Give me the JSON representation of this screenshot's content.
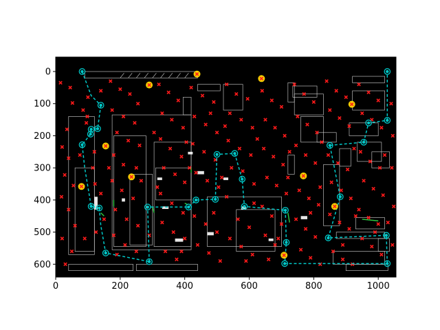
{
  "chart_data": {
    "type": "scatter",
    "title": "",
    "xlabel": "",
    "ylabel": "",
    "xlim": [
      0,
      1055
    ],
    "ylim": [
      640,
      -45
    ],
    "y_inverted": true,
    "x_ticks": [
      "0",
      "200",
      "400",
      "600",
      "800",
      "1000"
    ],
    "y_ticks": [
      "0",
      "100",
      "200",
      "300",
      "400",
      "500",
      "600"
    ],
    "background": "floor-plan-drawing",
    "colors": {
      "plot_bg": "#000000",
      "drawing_lines": "#d9d9d9",
      "wall_green": "#2ecc40",
      "cross_marker": "#ff1a1a",
      "path_line": "#00c8c8",
      "circle_marker": "#00c8c8",
      "star_marker": "#ffd700"
    },
    "series": [
      {
        "marker": "circle",
        "points": [
          [
            82,
            0
          ],
          [
            140,
            105
          ],
          [
            110,
            180
          ],
          [
            130,
            178
          ],
          [
            108,
            195
          ],
          [
            82,
            228
          ],
          [
            110,
            420
          ],
          [
            135,
            425
          ],
          [
            155,
            565
          ],
          [
            290,
            592
          ],
          [
            285,
            422
          ],
          [
            412,
            422
          ],
          [
            435,
            400
          ],
          [
            495,
            398
          ],
          [
            500,
            258
          ],
          [
            555,
            255
          ],
          [
            578,
            335
          ],
          [
            585,
            420
          ],
          [
            712,
            432
          ],
          [
            715,
            532
          ],
          [
            710,
            598
          ],
          [
            1028,
            598
          ],
          [
            1025,
            510
          ],
          [
            845,
            518
          ],
          [
            882,
            390
          ],
          [
            850,
            230
          ],
          [
            955,
            220
          ],
          [
            970,
            160
          ],
          [
            1028,
            152
          ],
          [
            1028,
            0
          ]
        ]
      },
      {
        "marker": "path",
        "segments": [
          [
            [
              82,
              0
            ],
            [
              110,
              75
            ],
            [
              140,
              105
            ]
          ],
          [
            [
              140,
              105
            ],
            [
              130,
              178
            ],
            [
              110,
              180
            ]
          ],
          [
            [
              110,
              180
            ],
            [
              108,
              195
            ],
            [
              82,
              228
            ],
            [
              90,
              300
            ],
            [
              110,
              420
            ],
            [
              135,
              425
            ]
          ],
          [
            [
              135,
              425
            ],
            [
              140,
              480
            ],
            [
              155,
              565
            ],
            [
              290,
              592
            ]
          ],
          [
            [
              290,
              592
            ],
            [
              285,
              422
            ],
            [
              412,
              422
            ],
            [
              435,
              400
            ],
            [
              495,
              398
            ]
          ],
          [
            [
              495,
              398
            ],
            [
              500,
              258
            ],
            [
              555,
              255
            ],
            [
              578,
              335
            ],
            [
              585,
              420
            ],
            [
              712,
              432
            ]
          ],
          [
            [
              712,
              432
            ],
            [
              715,
              532
            ],
            [
              710,
              598
            ],
            [
              1028,
              598
            ]
          ],
          [
            [
              1028,
              598
            ],
            [
              1025,
              510
            ],
            [
              845,
              518
            ],
            [
              882,
              390
            ],
            [
              850,
              230
            ]
          ],
          [
            [
              850,
              230
            ],
            [
              955,
              220
            ],
            [
              970,
              160
            ],
            [
              1028,
              152
            ],
            [
              1028,
              0
            ]
          ]
        ]
      },
      {
        "marker": "star",
        "points": [
          [
            290,
            42
          ],
          [
            438,
            8
          ],
          [
            638,
            22
          ],
          [
            155,
            232
          ],
          [
            235,
            328
          ],
          [
            80,
            358
          ],
          [
            768,
            325
          ],
          [
            865,
            420
          ],
          [
            708,
            572
          ],
          [
            918,
            102
          ]
        ]
      },
      {
        "marker": "x",
        "points": [
          [
            15,
            35
          ],
          [
            45,
            50
          ],
          [
            52,
            98
          ],
          [
            85,
            120
          ],
          [
            98,
            140
          ],
          [
            35,
            180
          ],
          [
            20,
            235
          ],
          [
            40,
            270
          ],
          [
            28,
            322
          ],
          [
            55,
            355
          ],
          [
            18,
            390
          ],
          [
            40,
            430
          ],
          [
            60,
            480
          ],
          [
            20,
            520
          ],
          [
            50,
            560
          ],
          [
            30,
            600
          ],
          [
            95,
            160
          ],
          [
            120,
            250
          ],
          [
            115,
            300
          ],
          [
            122,
            350
          ],
          [
            140,
            380
          ],
          [
            150,
            460
          ],
          [
            125,
            500
          ],
          [
            170,
            30
          ],
          [
            200,
            55
          ],
          [
            230,
            70
          ],
          [
            175,
            120
          ],
          [
            210,
            140
          ],
          [
            245,
            160
          ],
          [
            190,
            190
          ],
          [
            225,
            215
          ],
          [
            260,
            230
          ],
          [
            180,
            260
          ],
          [
            210,
            290
          ],
          [
            250,
            300
          ],
          [
            175,
            340
          ],
          [
            205,
            370
          ],
          [
            240,
            395
          ],
          [
            185,
            430
          ],
          [
            220,
            460
          ],
          [
            255,
            480
          ],
          [
            180,
            510
          ],
          [
            215,
            540
          ],
          [
            250,
            560
          ],
          [
            320,
            40
          ],
          [
            350,
            65
          ],
          [
            380,
            90
          ],
          [
            330,
            130
          ],
          [
            360,
            150
          ],
          [
            395,
            175
          ],
          [
            325,
            210
          ],
          [
            355,
            240
          ],
          [
            390,
            265
          ],
          [
            335,
            300
          ],
          [
            370,
            320
          ],
          [
            400,
            345
          ],
          [
            325,
            380
          ],
          [
            360,
            410
          ],
          [
            395,
            440
          ],
          [
            330,
            470
          ],
          [
            365,
            500
          ],
          [
            400,
            520
          ],
          [
            340,
            560
          ],
          [
            375,
            585
          ],
          [
            420,
            50
          ],
          [
            455,
            75
          ],
          [
            490,
            95
          ],
          [
            430,
            140
          ],
          [
            465,
            165
          ],
          [
            500,
            190
          ],
          [
            425,
            225
          ],
          [
            460,
            250
          ],
          [
            495,
            275
          ],
          [
            435,
            315
          ],
          [
            470,
            340
          ],
          [
            505,
            360
          ],
          [
            430,
            450
          ],
          [
            465,
            475
          ],
          [
            500,
            500
          ],
          [
            440,
            540
          ],
          [
            475,
            565
          ],
          [
            510,
            590
          ],
          [
            530,
            40
          ],
          [
            560,
            70
          ],
          [
            595,
            85
          ],
          [
            540,
            130
          ],
          [
            575,
            150
          ],
          [
            610,
            175
          ],
          [
            535,
            215
          ],
          [
            570,
            240
          ],
          [
            605,
            260
          ],
          [
            545,
            300
          ],
          [
            580,
            310
          ],
          [
            615,
            350
          ],
          [
            530,
            390
          ],
          [
            565,
            460
          ],
          [
            600,
            485
          ],
          [
            540,
            520
          ],
          [
            575,
            545
          ],
          [
            610,
            570
          ],
          [
            640,
            60
          ],
          [
            670,
            90
          ],
          [
            700,
            110
          ],
          [
            650,
            150
          ],
          [
            680,
            175
          ],
          [
            710,
            200
          ],
          [
            645,
            240
          ],
          [
            675,
            265
          ],
          [
            705,
            290
          ],
          [
            655,
            330
          ],
          [
            685,
            355
          ],
          [
            715,
            380
          ],
          [
            640,
            420
          ],
          [
            670,
            450
          ],
          [
            700,
            475
          ],
          [
            650,
            510
          ],
          [
            680,
            540
          ],
          [
            660,
            585
          ],
          [
            740,
            40
          ],
          [
            770,
            70
          ],
          [
            800,
            95
          ],
          [
            750,
            140
          ],
          [
            780,
            165
          ],
          [
            810,
            190
          ],
          [
            745,
            230
          ],
          [
            775,
            260
          ],
          [
            805,
            285
          ],
          [
            755,
            370
          ],
          [
            785,
            395
          ],
          [
            815,
            415
          ],
          [
            745,
            460
          ],
          [
            775,
            490
          ],
          [
            805,
            515
          ],
          [
            760,
            555
          ],
          [
            790,
            580
          ],
          [
            820,
            600
          ],
          [
            840,
            30
          ],
          [
            870,
            60
          ],
          [
            900,
            80
          ],
          [
            850,
            120
          ],
          [
            880,
            145
          ],
          [
            910,
            170
          ],
          [
            845,
            260
          ],
          [
            875,
            285
          ],
          [
            905,
            305
          ],
          [
            855,
            345
          ],
          [
            885,
            370
          ],
          [
            915,
            395
          ],
          [
            850,
            445
          ],
          [
            880,
            470
          ],
          [
            910,
            490
          ],
          [
            860,
            560
          ],
          [
            890,
            585
          ],
          [
            920,
            600
          ],
          [
            940,
            40
          ],
          [
            970,
            65
          ],
          [
            1000,
            90
          ],
          [
            950,
            130
          ],
          [
            980,
            150
          ],
          [
            1010,
            175
          ],
          [
            945,
            250
          ],
          [
            975,
            280
          ],
          [
            1005,
            300
          ],
          [
            955,
            340
          ],
          [
            985,
            365
          ],
          [
            1015,
            385
          ],
          [
            940,
            430
          ],
          [
            970,
            455
          ],
          [
            1000,
            475
          ],
          [
            950,
            520
          ],
          [
            980,
            545
          ],
          [
            1010,
            570
          ],
          [
            1040,
            100
          ],
          [
            1045,
            200
          ],
          [
            1042,
            300
          ],
          [
            1048,
            420
          ],
          [
            1044,
            540
          ],
          [
            100,
            80
          ],
          [
            140,
            60
          ],
          [
            255,
            100
          ],
          [
            305,
            190
          ],
          [
            405,
            220
          ],
          [
            480,
            130
          ],
          [
            525,
            170
          ],
          [
            625,
            210
          ],
          [
            725,
            250
          ],
          [
            825,
            220
          ],
          [
            925,
            240
          ],
          [
            1020,
            260
          ],
          [
            75,
            260
          ],
          [
            165,
            300
          ],
          [
            265,
            340
          ],
          [
            315,
            360
          ],
          [
            415,
            300
          ],
          [
            515,
            330
          ],
          [
            615,
            410
          ],
          [
            720,
            330
          ],
          [
            820,
            360
          ],
          [
            930,
            450
          ],
          [
            1030,
            470
          ],
          [
            90,
            520
          ],
          [
            190,
            570
          ],
          [
            290,
            510
          ],
          [
            390,
            560
          ],
          [
            490,
            440
          ],
          [
            590,
            590
          ],
          [
            690,
            520
          ],
          [
            790,
            440
          ],
          [
            890,
            540
          ],
          [
            990,
            500
          ]
        ]
      }
    ]
  }
}
